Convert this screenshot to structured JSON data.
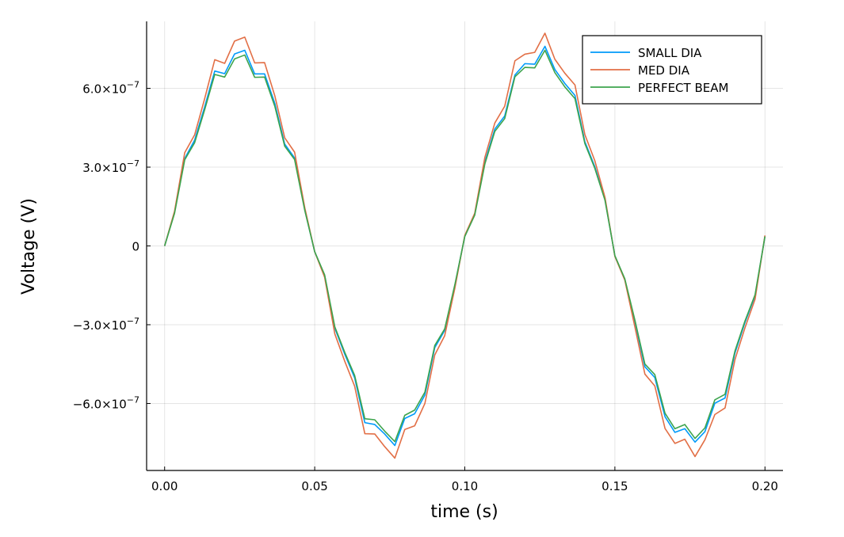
{
  "chart_data": {
    "type": "line",
    "title": "",
    "xlabel": "time (s)",
    "ylabel": "Voltage (V)",
    "xlim": [
      -0.006,
      0.206
    ],
    "ylim": [
      -8.55e-07,
      8.55e-07
    ],
    "grid": true,
    "legend_position": "top-right",
    "x_ticks": [
      {
        "value": 0.0,
        "label": "0.00"
      },
      {
        "value": 0.05,
        "label": "0.05"
      },
      {
        "value": 0.1,
        "label": "0.10"
      },
      {
        "value": 0.15,
        "label": "0.15"
      },
      {
        "value": 0.2,
        "label": "0.20"
      }
    ],
    "y_ticks": [
      {
        "value": 6e-07,
        "mantissa": "6.0×10",
        "exp": "−7"
      },
      {
        "value": 3e-07,
        "mantissa": "3.0×10",
        "exp": "−7"
      },
      {
        "value": 0,
        "mantissa": "0",
        "exp": ""
      },
      {
        "value": -3e-07,
        "mantissa": "−3.0×10",
        "exp": "−7"
      },
      {
        "value": -6e-07,
        "mantissa": "−6.0×10",
        "exp": "−7"
      }
    ],
    "x": [
      0.0,
      0.0033,
      0.0067,
      0.01,
      0.0133,
      0.0167,
      0.02,
      0.0233,
      0.0267,
      0.03,
      0.0333,
      0.0367,
      0.04,
      0.0433,
      0.0467,
      0.05,
      0.0533,
      0.0567,
      0.06,
      0.0633,
      0.0667,
      0.07,
      0.0733,
      0.0767,
      0.08,
      0.0833,
      0.0867,
      0.09,
      0.0933,
      0.0967,
      0.1,
      0.1033,
      0.1067,
      0.11,
      0.1133,
      0.1167,
      0.12,
      0.1233,
      0.1267,
      0.13,
      0.1333,
      0.1367,
      0.14,
      0.1433,
      0.1467,
      0.15,
      0.1533,
      0.1567,
      0.16,
      0.1633,
      0.1667,
      0.17,
      0.1733,
      0.1767,
      0.18,
      0.1833,
      0.1867,
      0.19,
      0.1933,
      0.1967,
      0.2
    ],
    "series": [
      {
        "name": "SMALL DIA",
        "color": "#009AFA",
        "values": [
          0,
          1.28e-07,
          3.33e-07,
          4.03e-07,
          5.28e-07,
          6.66e-07,
          6.56e-07,
          7.31e-07,
          7.45e-07,
          6.55e-07,
          6.55e-07,
          5.43e-07,
          3.88e-07,
          3.35e-07,
          1.37e-07,
          -2.2e-08,
          -1.12e-07,
          -3.13e-07,
          -4.12e-07,
          -5.02e-07,
          -6.73e-07,
          -6.8e-07,
          -7.16e-07,
          -7.6e-07,
          -6.57e-07,
          -6.39e-07,
          -5.68e-07,
          -3.87e-07,
          -3.22e-07,
          -1.5e-07,
          3.7e-08,
          1.19e-07,
          3.2e-07,
          4.45e-07,
          4.95e-07,
          6.51e-07,
          6.94e-07,
          6.92e-07,
          7.6e-07,
          6.72e-07,
          6.19e-07,
          5.73e-07,
          3.97e-07,
          3.02e-07,
          1.77e-07,
          -3.8e-08,
          -1.28e-07,
          -2.9e-07,
          -4.6e-07,
          -5.01e-07,
          -6.5e-07,
          -7.1e-07,
          -6.96e-07,
          -7.47e-07,
          -7.07e-07,
          -5.99e-07,
          -5.79e-07,
          -4.08e-07,
          -2.93e-07,
          -1.9e-07,
          3.7e-08
        ]
      },
      {
        "name": "MED DIA",
        "color": "#E26F46",
        "values": [
          0,
          1.32e-07,
          3.55e-07,
          4.23e-07,
          5.59e-07,
          7.09e-07,
          6.95e-07,
          7.8e-07,
          7.95e-07,
          6.97e-07,
          6.98e-07,
          5.72e-07,
          4.12e-07,
          3.57e-07,
          1.45e-07,
          -2.2e-08,
          -1.19e-07,
          -3.35e-07,
          -4.39e-07,
          -5.34e-07,
          -7.15e-07,
          -7.16e-07,
          -7.64e-07,
          -8.08e-07,
          -6.99e-07,
          -6.85e-07,
          -6e-07,
          -4.15e-07,
          -3.42e-07,
          -1.6e-07,
          4e-08,
          1.24e-07,
          3.38e-07,
          4.68e-07,
          5.32e-07,
          7.05e-07,
          7.3e-07,
          7.37e-07,
          8.1e-07,
          7.11e-07,
          6.58e-07,
          6.13e-07,
          4.24e-07,
          3.25e-07,
          1.85e-07,
          -4e-08,
          -1.3e-07,
          -3.1e-07,
          -4.88e-07,
          -5.33e-07,
          -6.95e-07,
          -7.52e-07,
          -7.36e-07,
          -8.02e-07,
          -7.38e-07,
          -6.42e-07,
          -6.17e-07,
          -4.33e-07,
          -3.13e-07,
          -2.03e-07,
          4e-08
        ]
      },
      {
        "name": "PERFECT BEAM",
        "color": "#3DA44D",
        "values": [
          0,
          1.24e-07,
          3.28e-07,
          3.93e-07,
          5.17e-07,
          6.53e-07,
          6.43e-07,
          7.12e-07,
          7.27e-07,
          6.42e-07,
          6.43e-07,
          5.32e-07,
          3.8e-07,
          3.29e-07,
          1.35e-07,
          -2.2e-08,
          -1.1e-07,
          -3.08e-07,
          -4.05e-07,
          -4.93e-07,
          -6.58e-07,
          -6.62e-07,
          -7.05e-07,
          -7.45e-07,
          -6.45e-07,
          -6.25e-07,
          -5.57e-07,
          -3.79e-07,
          -3.16e-07,
          -1.47e-07,
          3.6e-08,
          1.17e-07,
          3.13e-07,
          4.36e-07,
          4.85e-07,
          6.44e-07,
          6.8e-07,
          6.78e-07,
          7.45e-07,
          6.6e-07,
          6.06e-07,
          5.61e-07,
          3.9e-07,
          2.96e-07,
          1.74e-07,
          -3.7e-08,
          -1.25e-07,
          -2.84e-07,
          -4.5e-07,
          -4.9e-07,
          -6.37e-07,
          -6.96e-07,
          -6.8e-07,
          -7.33e-07,
          -6.93e-07,
          -5.86e-07,
          -5.65e-07,
          -4e-07,
          -2.87e-07,
          -1.86e-07,
          3.6e-08
        ]
      }
    ]
  }
}
